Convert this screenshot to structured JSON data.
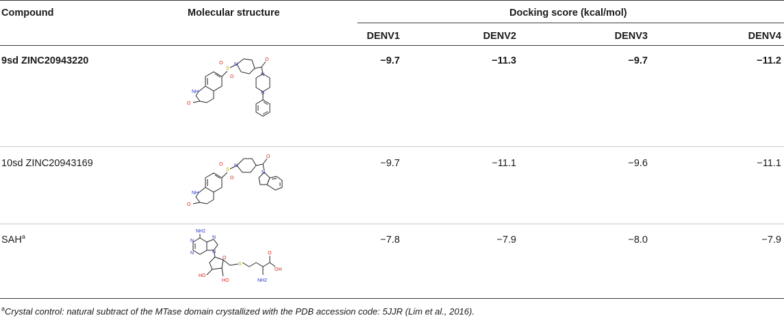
{
  "table": {
    "headers": {
      "compound": "Compound",
      "structure": "Molecular structure",
      "docking": "Docking score (kcal/mol)",
      "denv": [
        "DENV1",
        "DENV2",
        "DENV3",
        "DENV4"
      ]
    },
    "rows": [
      {
        "compound": "9sd ZINC20943220",
        "scores": [
          "−9.7",
          "−11.3",
          "−9.7",
          "−11.2"
        ],
        "bold": true,
        "structure_icon": "molecule-9sd"
      },
      {
        "compound": "10sd ZINC20943169",
        "scores": [
          "−9.7",
          "−11.1",
          "−9.6",
          "−11.1"
        ],
        "bold": false,
        "structure_icon": "molecule-10sd"
      },
      {
        "compound": "SAH",
        "compound_sup": "a",
        "scores": [
          "−7.8",
          "−7.9",
          "−8.0",
          "−7.9"
        ],
        "bold": false,
        "structure_icon": "molecule-sah"
      }
    ],
    "footnote": {
      "marker": "a",
      "text": "Crystal control: natural subtract of the MTase domain crystallized with the PDB accession code: 5JJR (Lim et al., 2016)."
    }
  },
  "colors": {
    "rule": "#3a3a3a",
    "row_divider": "#c8c8c8",
    "oxygen": "#d4241b",
    "nitrogen": "#2432c8",
    "sulfur": "#b8a400"
  }
}
